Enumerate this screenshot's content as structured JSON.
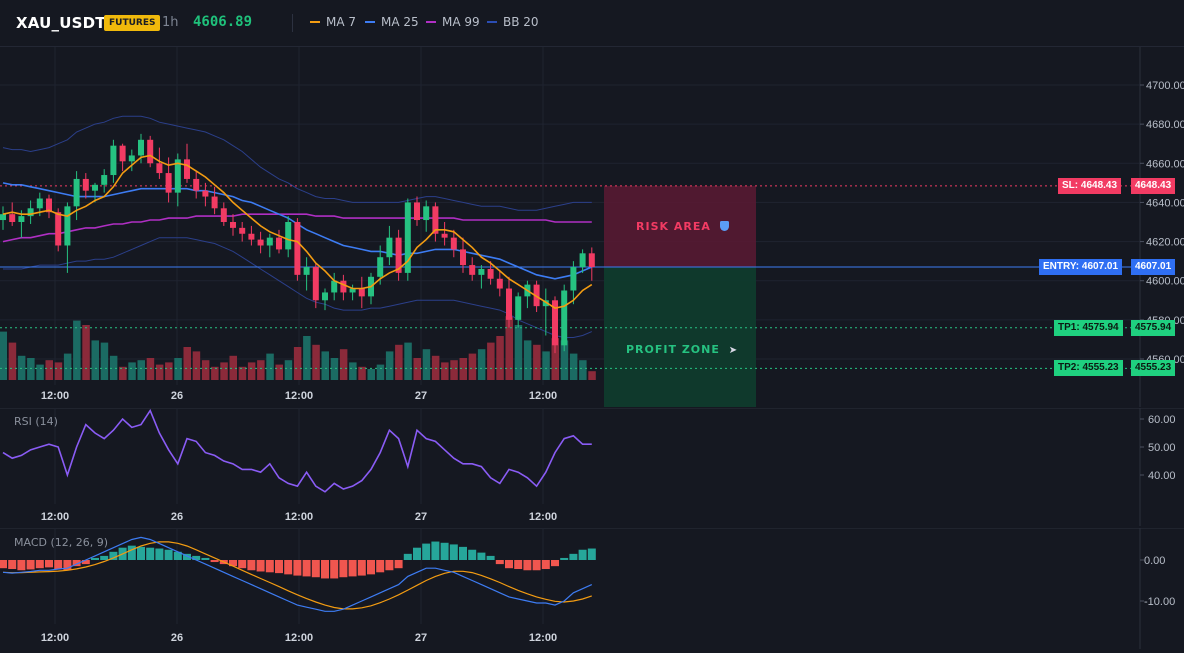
{
  "header": {
    "symbol": "XAU_USDT",
    "badge": "FUTURES",
    "timeframe": "1h",
    "last_price": "4606.89",
    "legend": [
      {
        "label": "MA 7",
        "color": "#f39c12"
      },
      {
        "label": "MA 25",
        "color": "#3d7cf3"
      },
      {
        "label": "MA 99",
        "color": "#b02fc4"
      },
      {
        "label": "BB 20",
        "color": "#2b4db3"
      }
    ]
  },
  "colors": {
    "up": "#26c281",
    "down": "#f23b63",
    "vol_up": "#1b6b63",
    "vol_down": "#8b2a3a"
  },
  "price_axis": {
    "ticks": [
      "4700.00",
      "4680.00",
      "4660.00",
      "4640.00",
      "4620.00",
      "4600.00",
      "4580.00",
      "4560.00"
    ],
    "tick_values": [
      4700,
      4680,
      4660,
      4640,
      4620,
      4600,
      4580,
      4560
    ]
  },
  "time_axis": [
    "12:00",
    "26",
    "12:00",
    "27",
    "12:00"
  ],
  "trade": {
    "sl": {
      "label": "SL: 4648.43",
      "value": "4648.43",
      "price": 4648.43
    },
    "entry": {
      "label": "ENTRY: 4607.01",
      "value": "4607.01",
      "price": 4607.01
    },
    "tp1": {
      "label": "TP1: 4575.94",
      "value": "4575.94",
      "price": 4575.94
    },
    "tp2": {
      "label": "TP2: 4555.23",
      "value": "4555.23",
      "price": 4555.23
    },
    "risk_text": "RISK AREA",
    "profit_text": "PROFIT ZONE"
  },
  "rsi": {
    "label": "RSI (14)",
    "ticks": [
      "60.00",
      "50.00",
      "40.00"
    ],
    "tick_values": [
      60,
      50,
      40
    ]
  },
  "macd": {
    "label": "MACD (12, 26, 9)",
    "ticks": [
      "0.00",
      "-10.00"
    ],
    "tick_values": [
      0,
      -10
    ]
  },
  "chart_data": {
    "type": "candlestick",
    "ohlc": [
      [
        4631,
        4638,
        4626,
        4634
      ],
      [
        4634,
        4640,
        4628,
        4630
      ],
      [
        4630,
        4636,
        4622,
        4633
      ],
      [
        4633,
        4641,
        4629,
        4637
      ],
      [
        4637,
        4645,
        4633,
        4642
      ],
      [
        4642,
        4644,
        4632,
        4635
      ],
      [
        4635,
        4637,
        4615,
        4618
      ],
      [
        4618,
        4640,
        4604,
        4638
      ],
      [
        4638,
        4656,
        4631,
        4652
      ],
      [
        4652,
        4655,
        4642,
        4646
      ],
      [
        4646,
        4650,
        4640,
        4649
      ],
      [
        4649,
        4657,
        4645,
        4654
      ],
      [
        4654,
        4672,
        4650,
        4669
      ],
      [
        4669,
        4670,
        4656,
        4661
      ],
      [
        4661,
        4667,
        4656,
        4664
      ],
      [
        4664,
        4675,
        4660,
        4672
      ],
      [
        4672,
        4674,
        4658,
        4660
      ],
      [
        4660,
        4668,
        4652,
        4655
      ],
      [
        4655,
        4663,
        4640,
        4645
      ],
      [
        4645,
        4665,
        4638,
        4662
      ],
      [
        4662,
        4670,
        4650,
        4652
      ],
      [
        4652,
        4656,
        4642,
        4646
      ],
      [
        4646,
        4650,
        4638,
        4643
      ],
      [
        4643,
        4648,
        4634,
        4637
      ],
      [
        4637,
        4640,
        4628,
        4630
      ],
      [
        4630,
        4634,
        4623,
        4627
      ],
      [
        4627,
        4630,
        4620,
        4624
      ],
      [
        4624,
        4628,
        4618,
        4621
      ],
      [
        4621,
        4625,
        4614,
        4618
      ],
      [
        4618,
        4624,
        4612,
        4622
      ],
      [
        4622,
        4626,
        4614,
        4616
      ],
      [
        4616,
        4633,
        4612,
        4630
      ],
      [
        4630,
        4632,
        4600,
        4603
      ],
      [
        4603,
        4612,
        4595,
        4607
      ],
      [
        4607,
        4609,
        4586,
        4590
      ],
      [
        4590,
        4596,
        4585,
        4594
      ],
      [
        4594,
        4604,
        4590,
        4600
      ],
      [
        4600,
        4603,
        4590,
        4594
      ],
      [
        4594,
        4598,
        4590,
        4596
      ],
      [
        4596,
        4602,
        4586,
        4592
      ],
      [
        4592,
        4604,
        4588,
        4602
      ],
      [
        4602,
        4618,
        4598,
        4612
      ],
      [
        4612,
        4628,
        4608,
        4622
      ],
      [
        4622,
        4626,
        4600,
        4604
      ],
      [
        4604,
        4642,
        4600,
        4640
      ],
      [
        4640,
        4643,
        4628,
        4631
      ],
      [
        4631,
        4641,
        4625,
        4638
      ],
      [
        4638,
        4640,
        4620,
        4624
      ],
      [
        4624,
        4630,
        4618,
        4622
      ],
      [
        4622,
        4626,
        4612,
        4616
      ],
      [
        4616,
        4622,
        4604,
        4608
      ],
      [
        4608,
        4612,
        4600,
        4603
      ],
      [
        4603,
        4608,
        4596,
        4606
      ],
      [
        4606,
        4610,
        4598,
        4601
      ],
      [
        4601,
        4605,
        4592,
        4596
      ],
      [
        4596,
        4602,
        4576,
        4580
      ],
      [
        4580,
        4594,
        4576,
        4592
      ],
      [
        4592,
        4600,
        4586,
        4598
      ],
      [
        4598,
        4600,
        4584,
        4587
      ],
      [
        4587,
        4596,
        4572,
        4590
      ],
      [
        4590,
        4592,
        4563,
        4567
      ],
      [
        4567,
        4598,
        4564,
        4595
      ],
      [
        4595,
        4610,
        4588,
        4607
      ],
      [
        4607,
        4616,
        4604,
        4614
      ],
      [
        4614,
        4617,
        4600,
        4607
      ]
    ],
    "volume": [
      22,
      17,
      11,
      10,
      7,
      9,
      8,
      12,
      27,
      25,
      18,
      17,
      11,
      6,
      8,
      9,
      10,
      7,
      8,
      10,
      15,
      13,
      9,
      6,
      8,
      11,
      6,
      8,
      9,
      12,
      7,
      9,
      15,
      20,
      16,
      13,
      10,
      14,
      8,
      6,
      5,
      7,
      13,
      16,
      17,
      10,
      14,
      11,
      8,
      9,
      10,
      12,
      14,
      17,
      20,
      29,
      25,
      18,
      16,
      13,
      19,
      18,
      12,
      9,
      4
    ],
    "ma7": [
      4634,
      4635,
      4634,
      4634,
      4635,
      4636,
      4634,
      4633,
      4636,
      4638,
      4641,
      4643,
      4648,
      4655,
      4659,
      4663,
      4664,
      4661,
      4659,
      4660,
      4659,
      4656,
      4653,
      4649,
      4645,
      4640,
      4636,
      4632,
      4628,
      4625,
      4623,
      4621,
      4620,
      4615,
      4609,
      4605,
      4600,
      4598,
      4596,
      4596,
      4597,
      4601,
      4604,
      4606,
      4610,
      4617,
      4621,
      4626,
      4626,
      4625,
      4621,
      4617,
      4612,
      4609,
      4605,
      4601,
      4598,
      4595,
      4592,
      4589,
      4586,
      4587,
      4590,
      4595,
      4598
    ],
    "ma25": [
      4650,
      4649,
      4649,
      4648,
      4647,
      4646,
      4645,
      4644,
      4643,
      4643,
      4643,
      4643,
      4644,
      4645,
      4646,
      4647,
      4647,
      4647,
      4647,
      4647,
      4647,
      4646,
      4646,
      4645,
      4644,
      4643,
      4641,
      4640,
      4638,
      4636,
      4634,
      4632,
      4629,
      4626,
      4624,
      4622,
      4620,
      4618,
      4617,
      4616,
      4615,
      4615,
      4614,
      4613,
      4614,
      4614,
      4615,
      4616,
      4616,
      4616,
      4615,
      4614,
      4613,
      4612,
      4611,
      4609,
      4607,
      4605,
      4603,
      4602,
      4601,
      4602,
      4603,
      4605,
      4607
    ],
    "ma99": [
      4620,
      4621,
      4622,
      4622,
      4623,
      4624,
      4624,
      4625,
      4626,
      4627,
      4627,
      4628,
      4629,
      4629,
      4630,
      4630,
      4631,
      4631,
      4632,
      4632,
      4632,
      4633,
      4633,
      4633,
      4633,
      4633,
      4634,
      4634,
      4634,
      4634,
      4634,
      4634,
      4634,
      4634,
      4633,
      4633,
      4633,
      4632,
      4632,
      4632,
      4632,
      4632,
      4632,
      4632,
      4632,
      4632,
      4632,
      4632,
      4632,
      4632,
      4631,
      4631,
      4631,
      4631,
      4631,
      4631,
      4631,
      4631,
      4631,
      4631,
      4630,
      4630,
      4630,
      4630,
      4630
    ],
    "bb_upper": [
      4668,
      4667,
      4667,
      4666,
      4667,
      4668,
      4670,
      4672,
      4676,
      4678,
      4680,
      4681,
      4683,
      4684,
      4684,
      4684,
      4683,
      4681,
      4680,
      4679,
      4678,
      4677,
      4676,
      4674,
      4672,
      4669,
      4666,
      4662,
      4658,
      4655,
      4652,
      4650,
      4647,
      4645,
      4643,
      4642,
      4642,
      4641,
      4640,
      4640,
      4640,
      4640,
      4640,
      4640,
      4641,
      4642,
      4643,
      4643,
      4642,
      4641,
      4640,
      4639,
      4638,
      4638,
      4638,
      4637,
      4636,
      4636,
      4636,
      4637,
      4638,
      4639,
      4640,
      4640,
      4640
    ],
    "bb_lower": [
      4606,
      4606,
      4606,
      4607,
      4608,
      4608,
      4608,
      4609,
      4610,
      4610,
      4611,
      4611,
      4612,
      4614,
      4616,
      4618,
      4620,
      4622,
      4622,
      4622,
      4622,
      4621,
      4620,
      4619,
      4617,
      4615,
      4612,
      4609,
      4606,
      4603,
      4600,
      4597,
      4594,
      4591,
      4589,
      4588,
      4586,
      4585,
      4585,
      4585,
      4586,
      4586,
      4587,
      4588,
      4589,
      4590,
      4590,
      4590,
      4590,
      4590,
      4589,
      4588,
      4587,
      4586,
      4585,
      4583,
      4580,
      4578,
      4576,
      4574,
      4572,
      4571,
      4571,
      4572,
      4574
    ],
    "rsi": [
      48,
      46,
      47,
      49,
      50,
      51,
      50,
      40,
      50,
      58,
      55,
      53,
      56,
      60,
      57,
      58,
      63,
      55,
      49,
      44,
      53,
      52,
      48,
      47,
      45,
      44,
      42,
      42,
      41,
      44,
      39,
      37,
      36,
      41,
      36,
      34,
      37,
      35,
      36,
      38,
      42,
      48,
      56,
      53,
      43,
      56,
      53,
      52,
      49,
      46,
      44,
      44,
      43,
      39,
      37,
      42,
      41,
      39,
      36,
      41,
      48,
      53,
      54,
      51,
      51
    ],
    "macd_hist": [
      -2,
      -2.2,
      -2.5,
      -2.3,
      -2,
      -1.8,
      -2.2,
      -2.5,
      -1.5,
      -1,
      0.5,
      1,
      2,
      3,
      3.5,
      3.2,
      3,
      2.8,
      2.5,
      2,
      1.5,
      1,
      0.5,
      -0.5,
      -1,
      -1.5,
      -2,
      -2.5,
      -2.8,
      -3,
      -3.2,
      -3.5,
      -3.8,
      -4,
      -4.2,
      -4.5,
      -4.5,
      -4.2,
      -4,
      -3.8,
      -3.5,
      -3,
      -2.5,
      -2,
      1.5,
      3,
      4,
      4.5,
      4.2,
      3.8,
      3.2,
      2.5,
      1.8,
      1,
      -1,
      -2,
      -2.2,
      -2.5,
      -2.5,
      -2.2,
      -1.5,
      0.5,
      1.5,
      2.5,
      2.8
    ],
    "macd_line": [
      -3,
      -3.2,
      -3,
      -2.8,
      -2.5,
      -2.5,
      -2.2,
      -2,
      -1,
      0,
      1,
      2,
      3,
      4,
      5,
      5.5,
      5,
      4,
      3,
      2,
      1,
      0,
      -1,
      -2,
      -3,
      -4,
      -5,
      -6,
      -7,
      -8,
      -9,
      -10,
      -11,
      -11.5,
      -12,
      -12.5,
      -12.5,
      -12,
      -11,
      -10,
      -9,
      -8,
      -7,
      -6,
      -4,
      -3,
      -2,
      -2,
      -2.5,
      -3,
      -4,
      -5,
      -6,
      -7,
      -8,
      -9,
      -9.5,
      -10,
      -10.5,
      -10.5,
      -11,
      -10,
      -8,
      -7,
      -6
    ]
  }
}
